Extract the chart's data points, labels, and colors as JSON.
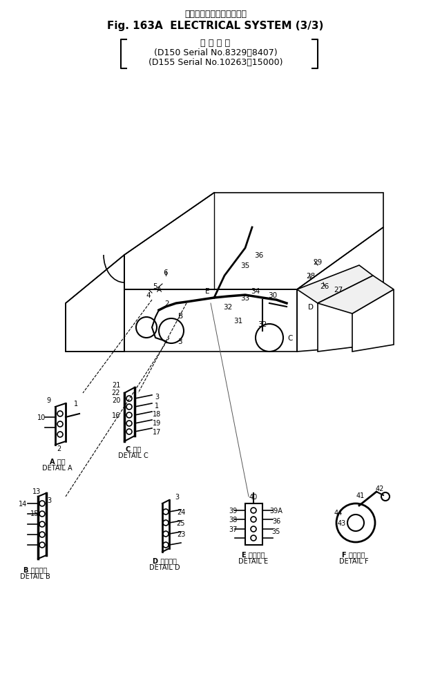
{
  "title_jp": "エレクトリカル　システム",
  "title_en": "Fig. 163A  ELECTRICAL SYSTEM (3/3)",
  "subtitle_jp": "適 用 号 機",
  "subtitle_line1": "(D150 Serial No.8329～8407)",
  "subtitle_line2": "(D155 Serial No.10263～15000)",
  "bg_color": "#ffffff",
  "line_color": "#000000",
  "detail_labels": [
    "A 詳細\nDETAIL A",
    "C 詳細\nDETAIL C",
    "B 詳細　詳\nDETAIL B",
    "D 詳細　細\nDETAIL D",
    "E 詳細　細\nDETAIL E",
    "F 詳細　細\nDETAIL F"
  ]
}
